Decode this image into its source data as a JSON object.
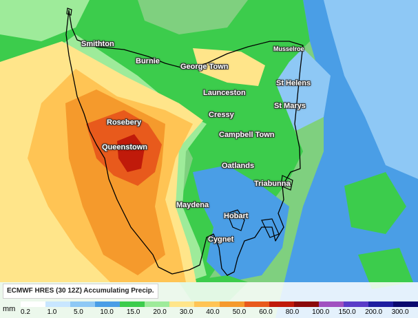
{
  "towns": [
    {
      "name": "Smithton",
      "cls": ""
    },
    {
      "name": "Burnie",
      "cls": ""
    },
    {
      "name": "George Town",
      "cls": ""
    },
    {
      "name": "Musselroe",
      "cls": "small"
    },
    {
      "name": "Launceston",
      "cls": ""
    },
    {
      "name": "St Helens",
      "cls": ""
    },
    {
      "name": "St Marys",
      "cls": ""
    },
    {
      "name": "Cressy",
      "cls": ""
    },
    {
      "name": "Rosebery",
      "cls": ""
    },
    {
      "name": "Campbell Town",
      "cls": ""
    },
    {
      "name": "Queenstown",
      "cls": ""
    },
    {
      "name": "Oatlands",
      "cls": ""
    },
    {
      "name": "Triabunna",
      "cls": ""
    },
    {
      "name": "Maydena",
      "cls": ""
    },
    {
      "name": "Hobart",
      "cls": ""
    },
    {
      "name": "Cygnet",
      "cls": ""
    }
  ],
  "legend": {
    "title": "ECMWF HRES (30 12Z) Accumulating Precip.",
    "unit": "mm",
    "levels": [
      "0.2",
      "1.0",
      "5.0",
      "10.0",
      "15.0",
      "20.0",
      "30.0",
      "40.0",
      "50.0",
      "60.0",
      "80.0",
      "100.0",
      "150.0",
      "200.0",
      "300.0"
    ],
    "colors": [
      "#ffffff",
      "#c8e6ff",
      "#8ec8f5",
      "#4a9ee6",
      "#3ccc4c",
      "#9eeb9a",
      "#ffe58a",
      "#ffc454",
      "#f59a2c",
      "#e85a1c",
      "#c01a0a",
      "#8b0a0a",
      "#a050c0",
      "#5a3cc8",
      "#1e1ea0",
      "#0a0a6e"
    ]
  },
  "colors": {
    "sea_green": "#7fd07f",
    "green": "#3ccc4c",
    "light_green": "#9eeb9a",
    "blue": "#4a9ee6",
    "light_blue": "#8ec8f5",
    "yellow": "#ffe58a",
    "orange": "#ffc454",
    "dark_orange": "#f59a2c",
    "red_orange": "#e85a1c",
    "red": "#c01a0a"
  }
}
